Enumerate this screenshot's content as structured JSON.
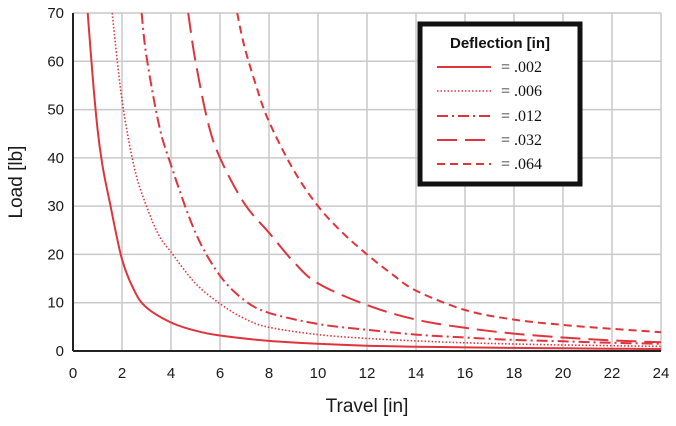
{
  "chart_data": {
    "type": "line",
    "xlabel": "Travel [in]",
    "ylabel": "Load [lb]",
    "xlim": [
      0,
      24
    ],
    "ylim": [
      0,
      70
    ],
    "xticks": [
      0,
      2,
      4,
      6,
      8,
      10,
      12,
      14,
      16,
      18,
      20,
      22,
      24
    ],
    "yticks": [
      0,
      10,
      20,
      30,
      40,
      50,
      60,
      70
    ],
    "grid": true,
    "legend": {
      "title": "Deflection [in]",
      "placement": "top-right"
    },
    "line_color": "#e0343c",
    "series": [
      {
        "name": "= .002",
        "dash": "solid",
        "x": [
          0.6,
          0.8,
          1.0,
          1.2,
          1.5,
          2.0,
          2.5,
          3.0,
          4.0,
          5.0,
          6.0,
          8.0,
          10.0,
          12.0,
          14.0,
          16.0,
          18.0,
          20.0,
          22.0,
          24.0
        ],
        "y": [
          70,
          57,
          46,
          38.5,
          30.8,
          19.0,
          12.5,
          9.0,
          5.9,
          4.2,
          3.2,
          2.1,
          1.5,
          1.1,
          0.9,
          0.75,
          0.65,
          0.55,
          0.48,
          0.42
        ]
      },
      {
        "name": "= .006",
        "dash": "dotted",
        "x": [
          1.6,
          2.0,
          2.5,
          3.0,
          3.5,
          4.0,
          5.0,
          6.0,
          7.0,
          8.0,
          10.0,
          12.0,
          14.0,
          16.0,
          18.0,
          20.0,
          22.0,
          24.0
        ],
        "y": [
          70,
          52,
          38,
          30,
          24,
          20.5,
          14,
          9.8,
          6.7,
          4.9,
          3.4,
          2.6,
          2.1,
          1.7,
          1.45,
          1.25,
          1.1,
          0.95
        ]
      },
      {
        "name": "= .012",
        "dash": "dash-dot",
        "x": [
          2.8,
          3.0,
          3.5,
          4.0,
          5.0,
          6.0,
          7.0,
          8.0,
          10.0,
          12.0,
          14.0,
          16.0,
          18.0,
          20.0,
          22.0,
          24.0
        ],
        "y": [
          70,
          61,
          47,
          38.5,
          24.5,
          15.6,
          10.5,
          7.9,
          5.6,
          4.4,
          3.4,
          2.8,
          2.3,
          2.0,
          1.7,
          1.5
        ]
      },
      {
        "name": "= .032",
        "dash": "long-dash",
        "x": [
          4.7,
          5.0,
          5.5,
          6.0,
          7.0,
          8.0,
          9.0,
          10.0,
          12.0,
          14.0,
          16.0,
          18.0,
          20.0,
          22.0,
          24.0
        ],
        "y": [
          70,
          60,
          47.5,
          40,
          30.5,
          24.5,
          18.5,
          14.0,
          9.5,
          6.5,
          4.8,
          3.6,
          2.8,
          2.2,
          1.8
        ]
      },
      {
        "name": "= .064",
        "dash": "short-dash",
        "x": [
          6.7,
          7.0,
          7.5,
          8.0,
          9.0,
          10.0,
          11.0,
          12.0,
          13.0,
          14.0,
          16.0,
          18.0,
          20.0,
          22.0,
          24.0
        ],
        "y": [
          70,
          63,
          54.5,
          47.5,
          37.5,
          30.0,
          24.5,
          20.0,
          16.0,
          12.5,
          8.5,
          6.5,
          5.4,
          4.6,
          3.9
        ]
      }
    ]
  }
}
